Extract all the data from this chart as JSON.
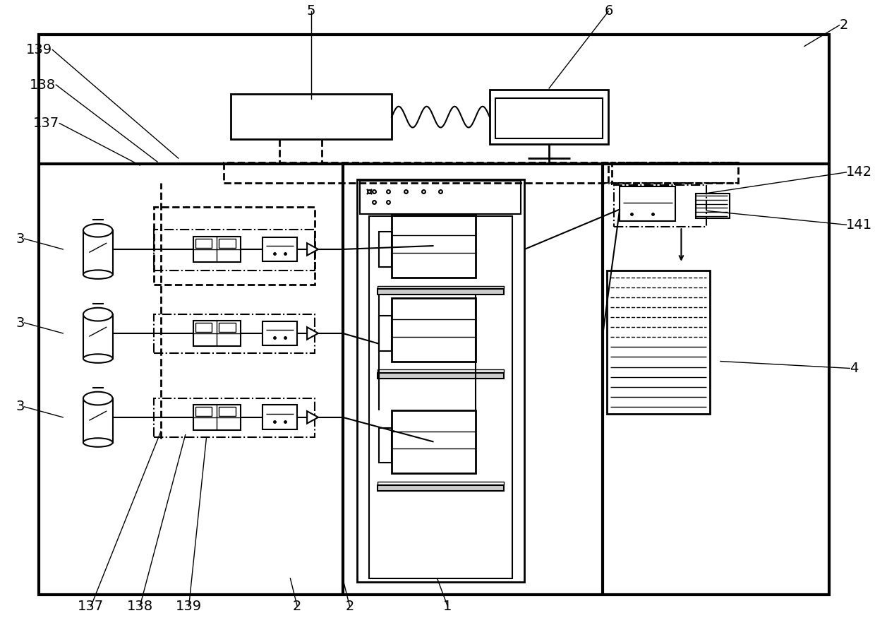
{
  "bg_color": "#ffffff",
  "line_color": "#000000",
  "figsize": [
    12.4,
    8.92
  ],
  "dpi": 100
}
